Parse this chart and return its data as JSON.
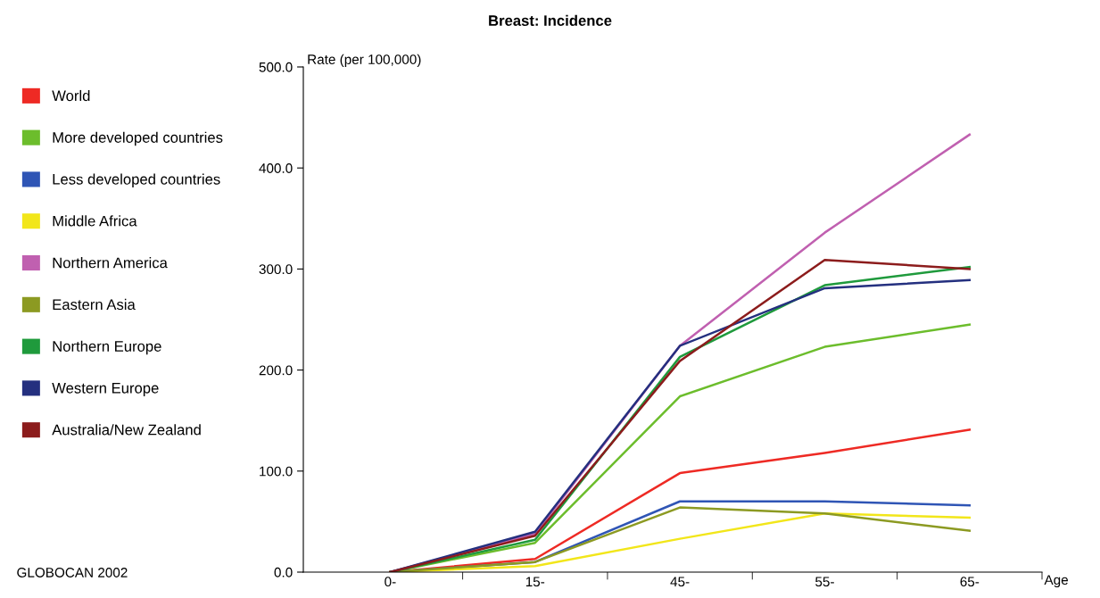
{
  "chart_data": {
    "type": "line",
    "title": "Breast: Incidence",
    "ylabel": "Rate (per 100,000)",
    "xlabel": "Age",
    "categories": [
      "0-",
      "15-",
      "45-",
      "55-",
      "65-"
    ],
    "series": [
      {
        "name": "World",
        "color": "#ee2a24",
        "values": [
          0,
          13,
          98,
          118,
          141
        ]
      },
      {
        "name": "More developed countries",
        "color": "#6cbd2c",
        "values": [
          0,
          29,
          174,
          223,
          245
        ]
      },
      {
        "name": "Less developed countries",
        "color": "#2f55b5",
        "values": [
          0,
          10,
          70,
          70,
          66
        ]
      },
      {
        "name": "Middle Africa",
        "color": "#f2e61a",
        "values": [
          0,
          6,
          33,
          58,
          54
        ]
      },
      {
        "name": "Northern America",
        "color": "#c060b0",
        "values": [
          0,
          38,
          224,
          336,
          433
        ]
      },
      {
        "name": "Eastern Asia",
        "color": "#8c9a22",
        "values": [
          0,
          10,
          64,
          58,
          41
        ]
      },
      {
        "name": "Northern Europe",
        "color": "#1f9a3c",
        "values": [
          0,
          32,
          213,
          284,
          302
        ]
      },
      {
        "name": "Western Europe",
        "color": "#24307f",
        "values": [
          0,
          40,
          224,
          281,
          289
        ]
      },
      {
        "name": "Australia/New Zealand",
        "color": "#8c1c1c",
        "values": [
          0,
          36,
          209,
          309,
          300
        ]
      }
    ],
    "ylim": [
      0,
      500
    ],
    "yticks": [
      {
        "value": 0,
        "label": "0.0"
      },
      {
        "value": 100,
        "label": "100.0"
      },
      {
        "value": 200,
        "label": "200.0"
      },
      {
        "value": 300,
        "label": "300.0"
      },
      {
        "value": 400,
        "label": "400.0"
      },
      {
        "value": 500,
        "label": "500.0"
      }
    ],
    "legend": "left",
    "grid": false,
    "marker": "none",
    "line_style": "solid",
    "annotations": [
      "GLOBOCAN 2002"
    ]
  }
}
